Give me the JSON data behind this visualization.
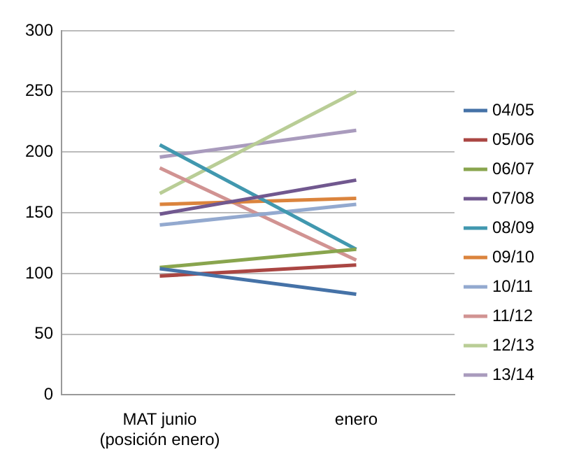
{
  "chart_data": {
    "type": "line",
    "categories": [
      "MAT junio\n(posición enero)",
      "enero"
    ],
    "series": [
      {
        "name": "04/05",
        "color": "#4572a7",
        "values": [
          104,
          83
        ]
      },
      {
        "name": "05/06",
        "color": "#aa4643",
        "values": [
          98,
          107
        ]
      },
      {
        "name": "06/07",
        "color": "#89a54e",
        "values": [
          105,
          120
        ]
      },
      {
        "name": "07/08",
        "color": "#71588f",
        "values": [
          149,
          177
        ]
      },
      {
        "name": "08/09",
        "color": "#4198af",
        "values": [
          206,
          120
        ]
      },
      {
        "name": "09/10",
        "color": "#db843d",
        "values": [
          157,
          162
        ]
      },
      {
        "name": "10/11",
        "color": "#93a9cf",
        "values": [
          140,
          157
        ]
      },
      {
        "name": "11/12",
        "color": "#d19392",
        "values": [
          187,
          111
        ]
      },
      {
        "name": "12/13",
        "color": "#b9cd96",
        "values": [
          166,
          250
        ]
      },
      {
        "name": "13/14",
        "color": "#a99bbd",
        "values": [
          196,
          218
        ]
      }
    ],
    "ylim": [
      0,
      300
    ],
    "yticks": [
      0,
      50,
      100,
      150,
      200,
      250,
      300
    ],
    "grid": "y",
    "legend": "right",
    "marker": "none"
  }
}
